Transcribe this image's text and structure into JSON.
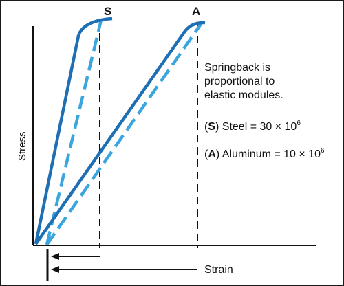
{
  "diagram": {
    "title": "",
    "colors": {
      "elastic_curve": "#1f6fb5",
      "springback_dashed": "#3aa6dd",
      "axis": "#111111"
    },
    "materials": [
      {
        "key": "S",
        "label": "S",
        "name": "Steel"
      },
      {
        "key": "A",
        "label": "A",
        "name": "Aluminum"
      }
    ],
    "axes": {
      "y_label": "Stress",
      "x_label": "Strain"
    },
    "note": {
      "line1": "Springback is",
      "line2": "proportional to",
      "line3": "elastic modules."
    },
    "legend": {
      "steel_key": "S",
      "steel_text": " Steel = 30 × 10",
      "steel_exp": "6",
      "aluminum_key": "A",
      "aluminum_text": " Aluminum = 10 × 10",
      "aluminum_exp": "6"
    }
  }
}
